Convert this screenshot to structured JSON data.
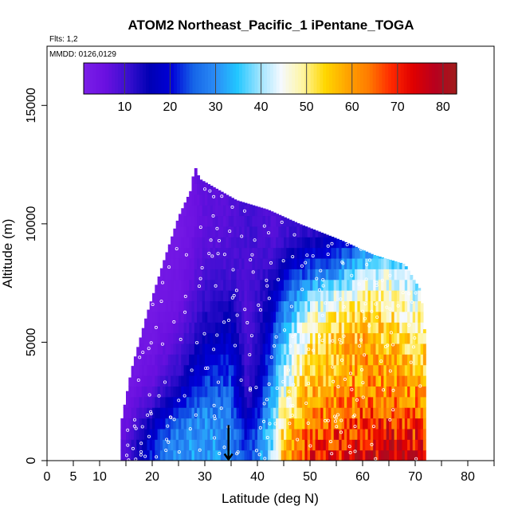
{
  "chart_data": {
    "type": "heatmap",
    "title": "ATOM2 Northeast_Pacific_1 iPentane_TOGA",
    "subtitle_flights": "Flts: 1,2",
    "subtitle_dates": "MMDD: 0126,0129",
    "xlabel": "Latitude (deg N)",
    "ylabel": "Altitude (m)",
    "xlim": [
      0,
      85
    ],
    "ylim": [
      0,
      17500
    ],
    "x_ticks": [
      0,
      5,
      10,
      20,
      30,
      40,
      50,
      60,
      70,
      80
    ],
    "x_tick_labels": [
      "0",
      "5",
      "10",
      "20",
      "30",
      "40",
      "50",
      "60",
      "70",
      "80"
    ],
    "x_minor_ticks": [
      0,
      5,
      10,
      15,
      20,
      25,
      30,
      35,
      40,
      45,
      50,
      55,
      60,
      65,
      70,
      75,
      80,
      85
    ],
    "y_ticks": [
      0,
      5000,
      10000,
      15000
    ],
    "y_tick_labels": [
      "0",
      "5000",
      "10000",
      "15000"
    ],
    "colorbar": {
      "min": 1,
      "max": 83,
      "ticks": [
        10,
        20,
        30,
        40,
        50,
        60,
        70,
        80
      ],
      "tick_labels": [
        "10",
        "20",
        "30",
        "40",
        "50",
        "60",
        "70",
        "80"
      ]
    },
    "colors": [
      "#7b1fe8",
      "#6a10e0",
      "#3a0fd0",
      "#0000b4",
      "#0000d8",
      "#1565e8",
      "#2b8cf6",
      "#22c7ff",
      "#9be3ff",
      "#f5f9ff",
      "#fff5a0",
      "#ffd700",
      "#ffa500",
      "#ff7a00",
      "#ff2a00",
      "#e00000",
      "#b8001e",
      "#a01c1c"
    ],
    "arrow_latitude": 34.5,
    "envelope_top_altitude_by_latitude": [
      [
        14,
        1500
      ],
      [
        16,
        3800
      ],
      [
        19,
        6200
      ],
      [
        22,
        8300
      ],
      [
        25,
        10300
      ],
      [
        27.5,
        11500
      ],
      [
        28,
        12500
      ],
      [
        29,
        11900
      ],
      [
        36,
        11000
      ],
      [
        42,
        10600
      ],
      [
        48,
        10000
      ],
      [
        56,
        9300
      ],
      [
        62,
        8700
      ],
      [
        68,
        8300
      ],
      [
        71,
        7200
      ],
      [
        72,
        5000
      ],
      [
        72,
        0
      ]
    ],
    "concentration_profile_by_latitude": [
      {
        "lat": 15,
        "values": [
          8,
          6,
          4,
          3,
          3,
          3,
          3,
          3
        ]
      },
      {
        "lat": 20,
        "values": [
          22,
          16,
          10,
          6,
          4,
          3,
          3,
          3
        ]
      },
      {
        "lat": 25,
        "values": [
          30,
          28,
          20,
          12,
          8,
          5,
          4,
          3
        ]
      },
      {
        "lat": 30,
        "values": [
          32,
          30,
          28,
          22,
          16,
          12,
          9,
          7
        ]
      },
      {
        "lat": 35,
        "values": [
          30,
          28,
          26,
          24,
          18,
          14,
          10,
          8
        ]
      },
      {
        "lat": 38,
        "values": [
          22,
          18,
          12,
          10,
          9,
          8,
          9,
          10
        ]
      },
      {
        "lat": 40,
        "values": [
          28,
          24,
          18,
          14,
          12,
          11,
          10,
          10
        ]
      },
      {
        "lat": 43,
        "values": [
          40,
          38,
          34,
          30,
          24,
          18,
          12,
          8
        ]
      },
      {
        "lat": 45,
        "values": [
          55,
          52,
          48,
          42,
          36,
          28,
          18,
          10
        ]
      },
      {
        "lat": 50,
        "values": [
          70,
          64,
          60,
          56,
          50,
          42,
          25,
          12
        ]
      },
      {
        "lat": 55,
        "values": [
          72,
          66,
          62,
          58,
          55,
          48,
          30,
          16
        ]
      },
      {
        "lat": 60,
        "values": [
          74,
          68,
          64,
          60,
          58,
          52,
          40,
          18
        ]
      },
      {
        "lat": 65,
        "values": [
          76,
          70,
          64,
          60,
          56,
          50,
          42,
          20
        ]
      },
      {
        "lat": 70,
        "values": [
          74,
          68,
          62,
          58,
          52,
          46,
          38,
          18
        ]
      }
    ],
    "profile_altitudes_m": [
      500,
      1500,
      2500,
      3500,
      5000,
      6500,
      8000,
      9500
    ],
    "legend_placement": "top inset colorbar",
    "grid": false
  }
}
